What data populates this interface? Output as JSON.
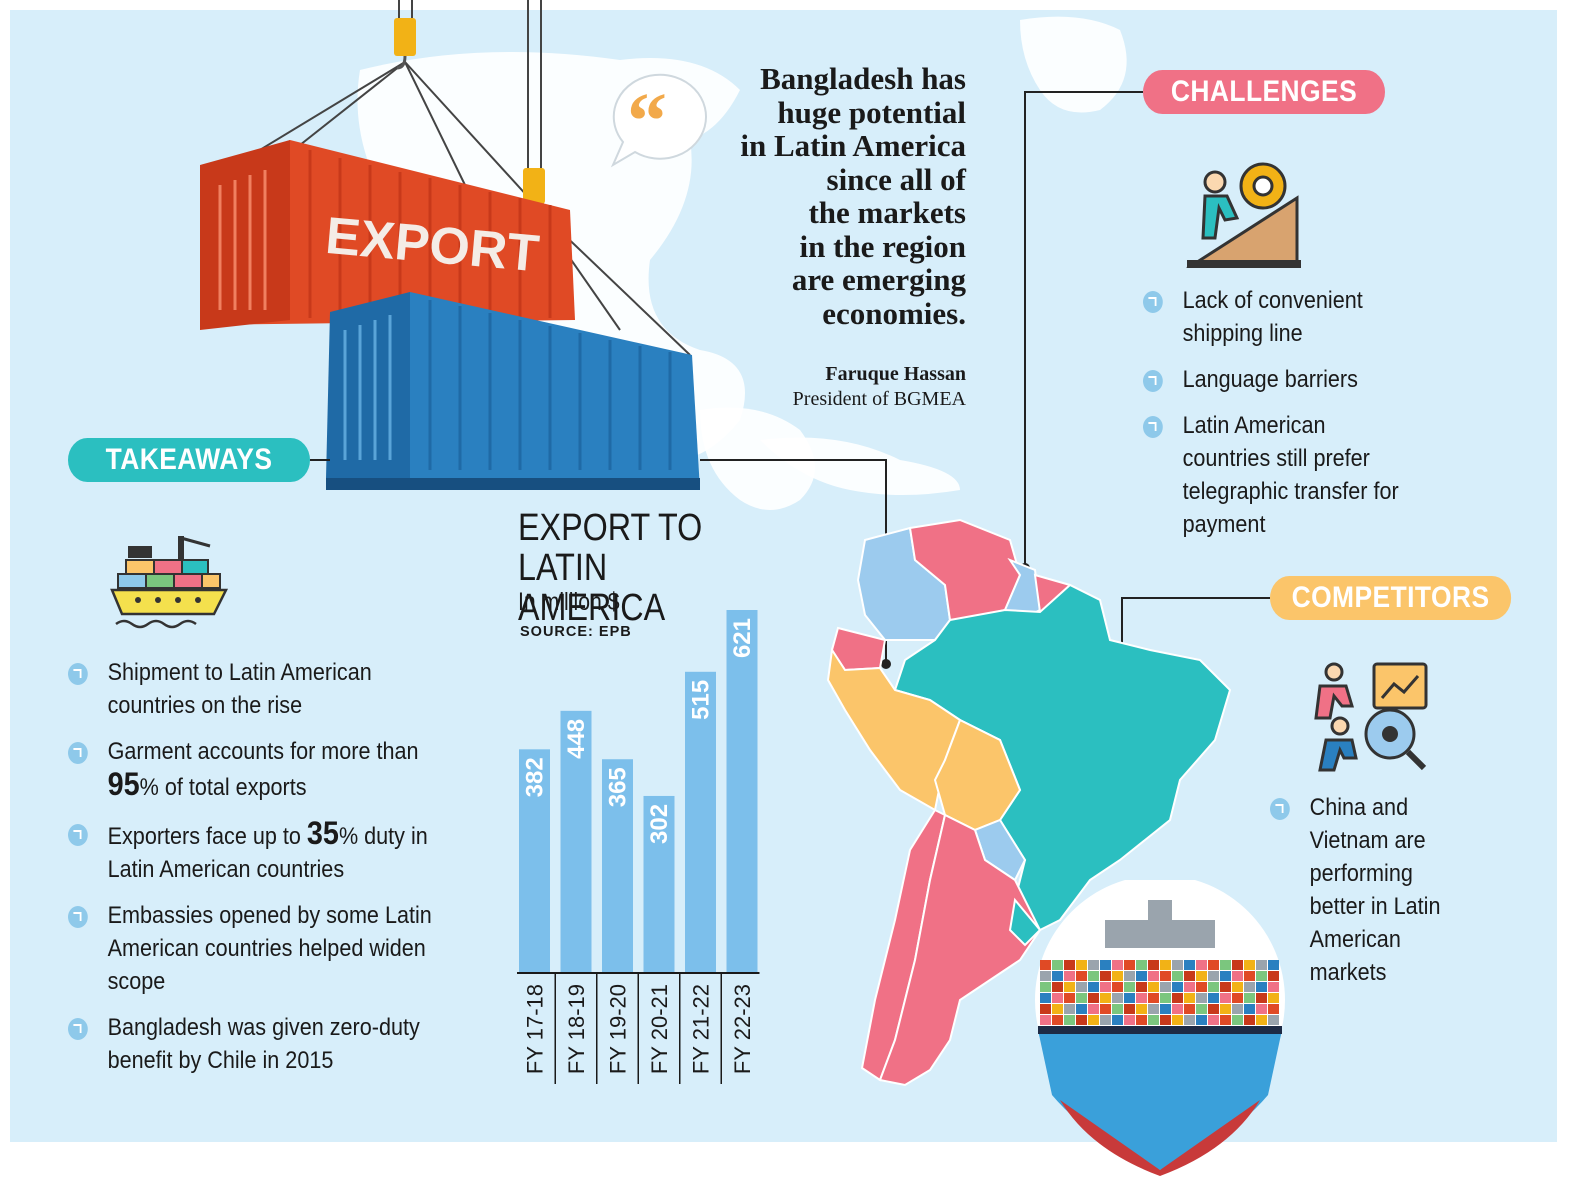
{
  "quote": {
    "lines": [
      "Bangladesh has",
      "huge potential",
      "in Latin America",
      "since all of",
      "the markets",
      "in the region",
      "are emerging",
      "economies."
    ],
    "author_name": "Faruque Hassan",
    "author_title": "President of BGMEA"
  },
  "container_label": "EXPORT",
  "takeaways": {
    "title": "TAKEAWAYS",
    "items": [
      {
        "parts": [
          {
            "t": "Shipment to Latin American countries on the rise"
          }
        ]
      },
      {
        "parts": [
          {
            "t": "Garment accounts for more than "
          },
          {
            "t": "95",
            "big": true
          },
          {
            "t": "% of total exports"
          }
        ]
      },
      {
        "parts": [
          {
            "t": "Exporters face up to "
          },
          {
            "t": "35",
            "big": true
          },
          {
            "t": "% duty in Latin American countries"
          }
        ]
      },
      {
        "parts": [
          {
            "t": "Embassies opened by some Latin American countries helped widen scope"
          }
        ]
      },
      {
        "parts": [
          {
            "t": "Bangladesh was given zero-duty benefit by Chile in 2015"
          }
        ]
      }
    ]
  },
  "challenges": {
    "title": "CHALLENGES",
    "items": [
      "Lack of convenient shipping line",
      "Language barriers",
      "Latin American countries still prefer telegraphic transfer for payment"
    ]
  },
  "competitors": {
    "title": "COMPETITORS",
    "items": [
      "China and Vietnam are performing better in Latin American markets"
    ]
  },
  "chart_data": {
    "type": "bar",
    "title": "EXPORT TO LATIN AMERICA",
    "unit": "In million $",
    "source": "SOURCE: EPB",
    "categories": [
      "FY 17-18",
      "FY 18-19",
      "FY 19-20",
      "FY 20-21",
      "FY 21-22",
      "FY 22-23"
    ],
    "values": [
      382,
      448,
      365,
      302,
      515,
      621
    ],
    "bar_color": "#7cbfeb",
    "ylim": [
      0,
      621
    ]
  },
  "colors": {
    "background": "#d7eefa",
    "takeaways_pill": "#2bbfc0",
    "challenges_pill": "#f07186",
    "competitors_pill": "#fbc56a",
    "map_pink": "#f07186",
    "map_teal": "#2bbfc0",
    "map_orange": "#fbc56a",
    "map_blue": "#9ccbee",
    "container_red": "#e04a25",
    "container_blue": "#2a80c0"
  }
}
